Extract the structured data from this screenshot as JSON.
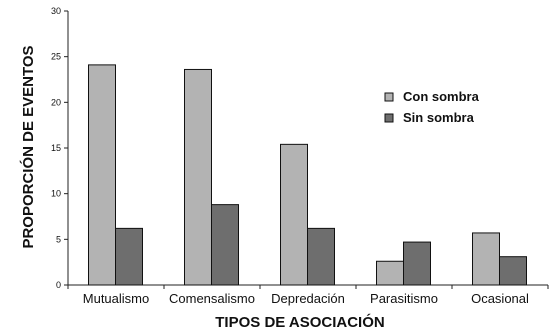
{
  "chart_data": {
    "type": "bar",
    "title": "",
    "xlabel": "TIPOS DE ASOCIACIÓN",
    "ylabel": "PROPORCIÓN DE EVENTOS",
    "categories": [
      "Mutualismo",
      "Comensalismo",
      "Depredación",
      "Parasitismo",
      "Ocasional"
    ],
    "series": [
      {
        "name": "Con sombra",
        "color": "#b3b3b3",
        "values": [
          24.1,
          23.6,
          15.4,
          2.6,
          5.7
        ]
      },
      {
        "name": "Sin sombra",
        "color": "#6e6e6e",
        "values": [
          6.2,
          8.8,
          6.2,
          4.7,
          3.1
        ]
      }
    ],
    "ylim": [
      0,
      30
    ],
    "yticks": [
      0,
      5,
      10,
      15,
      20,
      25,
      30
    ],
    "grid": false,
    "legend_position": "top-right"
  }
}
